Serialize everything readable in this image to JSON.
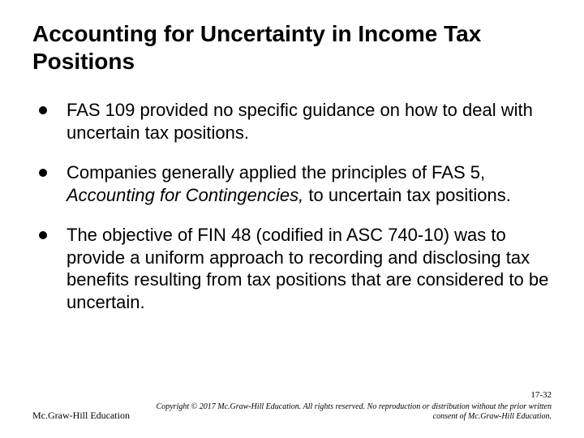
{
  "slide": {
    "title": "Accounting for Uncertainty in Income Tax Positions",
    "title_fontsize": 28,
    "title_weight": "bold",
    "bullets": [
      {
        "text": "FAS 109 provided no specific guidance on how to deal with uncertain tax positions."
      },
      {
        "text_before": "Companies generally applied the principles of FAS 5, ",
        "italic": "Accounting for Contingencies,",
        "text_after": " to uncertain tax positions."
      },
      {
        "text": "The objective of FIN 48 (codified in ASC 740-10) was to provide a uniform approach to recording and disclosing tax benefits resulting from tax positions that are considered to be uncertain."
      }
    ],
    "bullet_color": "#000000",
    "body_fontsize": 22,
    "footer": {
      "left": "Mc.Graw-Hill Education",
      "slide_number": "17-32",
      "copyright_line1": "Copyright © 2017 Mc.Graw-Hill Education. All rights reserved. No reproduction or distribution without the prior written",
      "copyright_line2": "consent of Mc.Graw-Hill Education."
    },
    "background_color": "#ffffff",
    "text_color": "#000000"
  }
}
